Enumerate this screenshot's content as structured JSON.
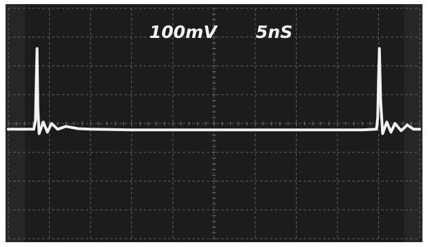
{
  "readouts": {
    "volts_per_div": "100mV",
    "time_per_div": "5nS"
  },
  "colors": {
    "screen": "#1c1c1c",
    "screen_edge": "#2f2f2f",
    "border": "#ffffff",
    "graticule": "#6e6e6e",
    "trace": "#f2f2f2",
    "text": "#f4f4f4"
  },
  "chart_data": {
    "type": "line",
    "title": "",
    "xlabel": "",
    "ylabel": "",
    "grid": true,
    "legend": "none",
    "x_divisions": 10,
    "y_divisions": 8,
    "xlim": [
      0,
      10
    ],
    "ylim": [
      -4,
      4
    ],
    "series": [
      {
        "x": [
          0,
          0.55,
          0.62,
          0.66,
          0.68,
          0.7,
          0.72,
          0.75,
          0.85,
          0.95,
          1.05,
          1.2,
          1.4,
          1.7,
          2,
          3,
          4,
          5,
          6,
          7,
          8,
          8.6,
          8.95,
          8.98,
          9.0,
          9.02,
          9.05,
          9.1,
          9.2,
          9.3,
          9.4,
          9.55,
          9.7,
          9.85,
          10
        ],
        "y": [
          -0.2,
          -0.2,
          -0.2,
          0.1,
          1.5,
          2.6,
          0.5,
          -0.35,
          0.05,
          -0.3,
          0.0,
          -0.2,
          -0.1,
          -0.18,
          -0.2,
          -0.22,
          -0.22,
          -0.22,
          -0.22,
          -0.22,
          -0.22,
          -0.22,
          -0.2,
          0.2,
          1.6,
          2.6,
          0.8,
          -0.35,
          0.05,
          -0.3,
          0.0,
          -0.25,
          -0.05,
          -0.2,
          -0.2
        ]
      }
    ]
  }
}
